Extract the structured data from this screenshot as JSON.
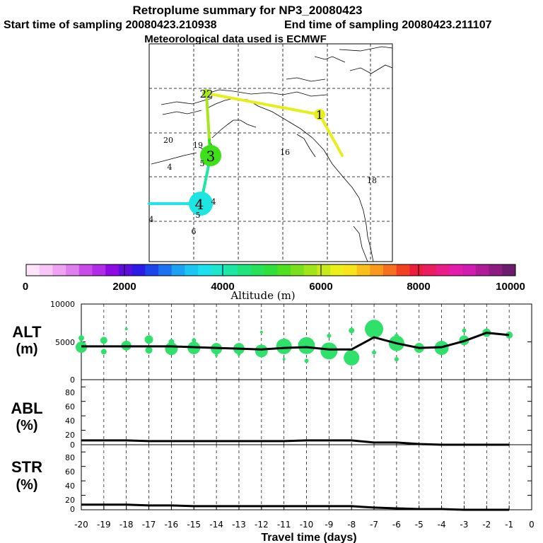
{
  "header": {
    "title": "Retroplume summary for NP3_20080423",
    "start_label": "Start time of sampling 20080423.210938",
    "end_label": "End time of sampling 20080423.211107",
    "met_label": "Meteorological data used is ECMWF"
  },
  "map": {
    "day_labels": [
      {
        "text": "1"
      },
      {
        "text": "22"
      },
      {
        "text": "3"
      },
      {
        "text": "4"
      },
      {
        "text": "20"
      },
      {
        "text": "19"
      },
      {
        "text": "16"
      },
      {
        "text": "18"
      },
      {
        "text": "4"
      },
      {
        "text": "5"
      },
      {
        "text": "4"
      },
      {
        "text": "5"
      },
      {
        "text": "6"
      },
      {
        "text": "4"
      }
    ],
    "land_color": "#000000",
    "track_colors": [
      "#e6ee1c",
      "#a8e61a",
      "#3ee01a",
      "#1ee6a4",
      "#1de6e2"
    ]
  },
  "colorbar": {
    "tick_labels": [
      "0",
      "2000",
      "4000",
      "6000",
      "8000",
      "10000"
    ],
    "unit_label": "Altitude (m)",
    "colors": [
      "#fde4fb",
      "#f7c6f6",
      "#eda3f1",
      "#de7fee",
      "#c94be9",
      "#b12ce6",
      "#8d0ae2",
      "#5e0ddf",
      "#2c1ae6",
      "#1c46ec",
      "#1c72f0",
      "#1ca2f2",
      "#1cc6f3",
      "#1ce0ee",
      "#1ce6cc",
      "#1de6a4",
      "#1fe47c",
      "#25e258",
      "#2fe03a",
      "#4fe01f",
      "#78e01c",
      "#a0e41a",
      "#c8ea18",
      "#eaf018",
      "#f7e41a",
      "#f9c01c",
      "#f89a1c",
      "#f6701e",
      "#f34020",
      "#ee1c3c",
      "#ec1c60",
      "#ea1c88",
      "#e41cac",
      "#d01cb0",
      "#b01c98",
      "#8c1c80",
      "#6c1c6c"
    ]
  },
  "panels": [
    {
      "label_line1": "ALT",
      "label_line2": "(m)",
      "yticks": [
        "10000",
        "5000",
        "0"
      ]
    },
    {
      "label_line1": "ABL",
      "label_line2": "(%)",
      "yticks": [
        "80",
        "60",
        "40",
        "20",
        "0"
      ]
    },
    {
      "label_line1": "STR",
      "label_line2": "(%)",
      "yticks": [
        "80",
        "60",
        "40",
        "20",
        "0"
      ]
    }
  ],
  "chart_data": {
    "type": "line",
    "xlabel": "Travel time (days)",
    "xlim": [
      -20,
      0
    ],
    "x_tick_labels": [
      "-20",
      "-19",
      "-18",
      "-17",
      "-16",
      "-15",
      "-14",
      "-13",
      "-12",
      "-11",
      "-10",
      "-9",
      "-8",
      "-7",
      "-6",
      "-5",
      "-4",
      "-3",
      "-2",
      "-1",
      "0"
    ],
    "series": [
      {
        "name": "ALT",
        "ylim": [
          0,
          10000
        ],
        "x": [
          -20,
          -19,
          -18,
          -17,
          -16,
          -15,
          -14,
          -13,
          -12,
          -11,
          -10,
          -9,
          -8,
          -7,
          -6,
          -5,
          -4,
          -3,
          -2,
          -1
        ],
        "values": [
          4400,
          4400,
          4400,
          4400,
          4400,
          4300,
          4200,
          4100,
          4000,
          4200,
          4300,
          4000,
          4000,
          5600,
          4800,
          4200,
          4300,
          5100,
          6200,
          5900
        ]
      },
      {
        "name": "ABL",
        "ylim": [
          0,
          90
        ],
        "x": [
          -20,
          -19,
          -18,
          -17,
          -16,
          -15,
          -14,
          -13,
          -12,
          -11,
          -10,
          -9,
          -8,
          -7,
          -6,
          -5,
          -4,
          -3,
          -2,
          -1
        ],
        "values": [
          6,
          6,
          6,
          5,
          5,
          5,
          5,
          5,
          5,
          5,
          6,
          6,
          6,
          3,
          3,
          1,
          0,
          0,
          0,
          0
        ]
      },
      {
        "name": "STR",
        "ylim": [
          0,
          90
        ],
        "x": [
          -20,
          -19,
          -18,
          -17,
          -16,
          -15,
          -14,
          -13,
          -12,
          -11,
          -10,
          -9,
          -8,
          -7,
          -6,
          -5,
          -4,
          -3,
          -2,
          -1
        ],
        "values": [
          7,
          7,
          7,
          6,
          6,
          5,
          5,
          5,
          5,
          5,
          5,
          5,
          5,
          3,
          2,
          1,
          1,
          0,
          0,
          0
        ]
      }
    ],
    "alt_scatter": [
      {
        "x": -20,
        "y": 4300,
        "s": 8
      },
      {
        "x": -20,
        "y": 5500,
        "s": 4
      },
      {
        "x": -19,
        "y": 5200,
        "s": 5
      },
      {
        "x": -19,
        "y": 3700,
        "s": 4
      },
      {
        "x": -18,
        "y": 4500,
        "s": 7
      },
      {
        "x": -18,
        "y": 6700,
        "s": 2
      },
      {
        "x": -17,
        "y": 5300,
        "s": 6
      },
      {
        "x": -17,
        "y": 3900,
        "s": 5
      },
      {
        "x": -16,
        "y": 4100,
        "s": 9
      },
      {
        "x": -16,
        "y": 5000,
        "s": 4
      },
      {
        "x": -15,
        "y": 4200,
        "s": 9
      },
      {
        "x": -15,
        "y": 5200,
        "s": 3
      },
      {
        "x": -14,
        "y": 4100,
        "s": 8
      },
      {
        "x": -14,
        "y": 3200,
        "s": 2
      },
      {
        "x": -13,
        "y": 4100,
        "s": 8
      },
      {
        "x": -13,
        "y": 3300,
        "s": 2
      },
      {
        "x": -12,
        "y": 3800,
        "s": 9
      },
      {
        "x": -12,
        "y": 6300,
        "s": 2
      },
      {
        "x": -11,
        "y": 4400,
        "s": 11
      },
      {
        "x": -11,
        "y": 2700,
        "s": 2
      },
      {
        "x": -10,
        "y": 4500,
        "s": 12
      },
      {
        "x": -10,
        "y": 2500,
        "s": 3
      },
      {
        "x": -9,
        "y": 3800,
        "s": 12
      },
      {
        "x": -9,
        "y": 5800,
        "s": 3
      },
      {
        "x": -8,
        "y": 2900,
        "s": 11
      },
      {
        "x": -8,
        "y": 6500,
        "s": 4
      },
      {
        "x": -7,
        "y": 6700,
        "s": 13
      },
      {
        "x": -7,
        "y": 3600,
        "s": 3
      },
      {
        "x": -6,
        "y": 4800,
        "s": 11
      },
      {
        "x": -6,
        "y": 5800,
        "s": 3
      },
      {
        "x": -6,
        "y": 2700,
        "s": 3
      },
      {
        "x": -5,
        "y": 4200,
        "s": 7
      },
      {
        "x": -4,
        "y": 4200,
        "s": 10
      },
      {
        "x": -3,
        "y": 5200,
        "s": 7
      },
      {
        "x": -3,
        "y": 6500,
        "s": 3
      },
      {
        "x": -2,
        "y": 6200,
        "s": 6
      },
      {
        "x": -1,
        "y": 5900,
        "s": 5
      }
    ]
  }
}
